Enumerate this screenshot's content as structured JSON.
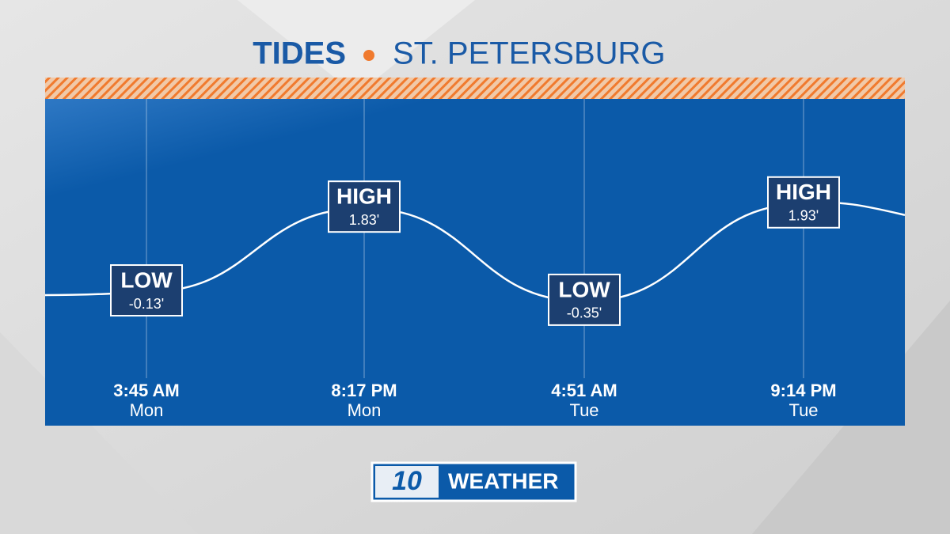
{
  "chart_data": {
    "type": "line",
    "title": "TIDES",
    "subtitle": "ST. PETERSBURG",
    "categories": [
      "3:45 AM",
      "8:17 PM",
      "4:51 AM",
      "9:14 PM"
    ],
    "days": [
      "Mon",
      "Mon",
      "Tue",
      "Tue"
    ],
    "tide_labels": [
      "LOW",
      "HIGH",
      "LOW",
      "HIGH"
    ],
    "values": [
      -0.13,
      1.83,
      -0.35,
      1.93
    ],
    "value_labels": [
      "-0.13'",
      "1.83'",
      "-0.35'",
      "1.93'"
    ],
    "color": "#ffffff"
  },
  "logo": {
    "number": "10",
    "text": "WEATHER"
  }
}
